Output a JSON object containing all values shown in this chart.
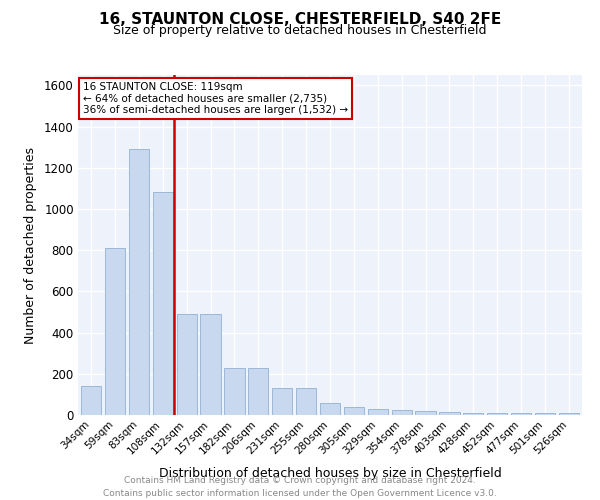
{
  "title": "16, STAUNTON CLOSE, CHESTERFIELD, S40 2FE",
  "subtitle": "Size of property relative to detached houses in Chesterfield",
  "xlabel": "Distribution of detached houses by size in Chesterfield",
  "ylabel": "Number of detached properties",
  "categories": [
    "34sqm",
    "59sqm",
    "83sqm",
    "108sqm",
    "132sqm",
    "157sqm",
    "182sqm",
    "206sqm",
    "231sqm",
    "255sqm",
    "280sqm",
    "305sqm",
    "329sqm",
    "354sqm",
    "378sqm",
    "403sqm",
    "428sqm",
    "452sqm",
    "477sqm",
    "501sqm",
    "526sqm"
  ],
  "values": [
    140,
    810,
    1290,
    1080,
    490,
    490,
    230,
    230,
    130,
    130,
    60,
    40,
    30,
    25,
    20,
    15,
    12,
    10,
    10,
    10,
    10
  ],
  "bar_color": "#c8d9ef",
  "bar_edge_color": "#9bb8d8",
  "red_line_label": "16 STAUNTON CLOSE: 119sqm",
  "annotation_line1": "← 64% of detached houses are smaller (2,735)",
  "annotation_line2": "36% of semi-detached houses are larger (1,532) →",
  "ylim": [
    0,
    1650
  ],
  "yticks": [
    0,
    200,
    400,
    600,
    800,
    1000,
    1200,
    1400,
    1600
  ],
  "background_color": "#eef2fa",
  "footer_line1": "Contains HM Land Registry data © Crown copyright and database right 2024.",
  "footer_line2": "Contains public sector information licensed under the Open Government Licence v3.0."
}
